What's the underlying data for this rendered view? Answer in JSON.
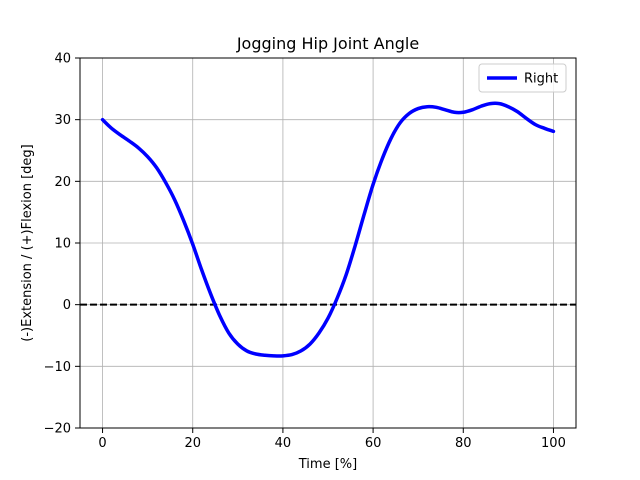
{
  "chart_data": {
    "type": "line",
    "title": "Jogging Hip Joint Angle",
    "xlabel": "Time [%]",
    "ylabel": "(-)Extension / (+)Flexion [deg]",
    "xlim": [
      -5,
      105
    ],
    "ylim": [
      -20,
      40
    ],
    "xticks": [
      0,
      20,
      40,
      60,
      80,
      100
    ],
    "yticks": [
      -20,
      -10,
      0,
      10,
      20,
      30,
      40
    ],
    "xtick_labels": [
      "0",
      "20",
      "40",
      "60",
      "80",
      "100"
    ],
    "ytick_labels": [
      "−20",
      "−10",
      "0",
      "10",
      "20",
      "30",
      "40"
    ],
    "grid": true,
    "legend": "top-right",
    "reference_line": {
      "y": 0,
      "style": "dashed",
      "color": "#000000"
    },
    "series": [
      {
        "name": "Right",
        "color": "#0000ff",
        "x": [
          0,
          2,
          4,
          6,
          8,
          10,
          12,
          14,
          16,
          18,
          20,
          22,
          24,
          26,
          28,
          30,
          32,
          34,
          36,
          38,
          40,
          42,
          44,
          46,
          48,
          50,
          52,
          54,
          56,
          58,
          60,
          62,
          64,
          66,
          68,
          70,
          72,
          74,
          76,
          78,
          80,
          82,
          84,
          86,
          88,
          90,
          92,
          94,
          96,
          98,
          100
        ],
        "y": [
          30.0,
          28.6,
          27.5,
          26.5,
          25.4,
          24.0,
          22.2,
          19.8,
          17.0,
          13.6,
          9.8,
          5.6,
          1.7,
          -1.8,
          -4.6,
          -6.4,
          -7.5,
          -8.0,
          -8.2,
          -8.3,
          -8.3,
          -8.1,
          -7.5,
          -6.4,
          -4.6,
          -2.2,
          1.0,
          4.8,
          9.5,
          14.6,
          19.5,
          23.6,
          27.0,
          29.5,
          31.0,
          31.8,
          32.1,
          32.0,
          31.6,
          31.2,
          31.2,
          31.6,
          32.2,
          32.6,
          32.6,
          32.1,
          31.3,
          30.2,
          29.2,
          28.6,
          28.1
        ]
      }
    ]
  }
}
